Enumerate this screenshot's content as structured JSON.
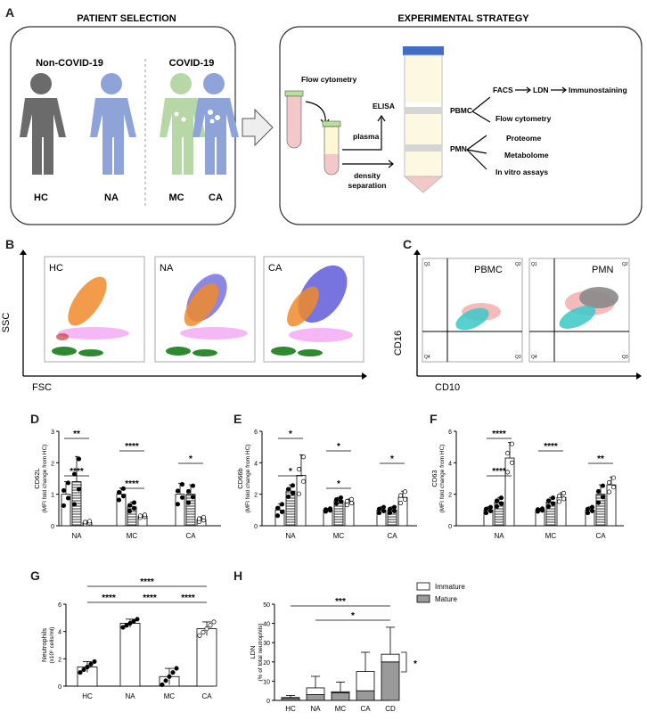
{
  "panels": {
    "A": "A",
    "B": "B",
    "C": "C",
    "D": "D",
    "E": "E",
    "F": "F",
    "G": "G",
    "H": "H"
  },
  "panelA": {
    "patient_title": "PATIENT SELECTION",
    "strategy_title": "EXPERIMENTAL STRATEGY",
    "noncovid": "Non-COVID-19",
    "covid": "COVID-19",
    "groups": [
      "HC",
      "NA",
      "MC",
      "CA"
    ],
    "flow_cytometry": "Flow cytometry",
    "elisa": "ELISA",
    "plasma": "plasma",
    "density": "density",
    "separation": "separation",
    "pbmc": "PBMC",
    "pmn": "PMN",
    "facs": "FACS",
    "ldn": "LDN",
    "immunostaining": "Immunostaining",
    "flow_cytometry2": "Flow cytometry",
    "proteome": "Proteome",
    "metabolome": "Metabolome",
    "invitro": "In vitro assays"
  },
  "panelB": {
    "plots": [
      "HC",
      "NA",
      "CA"
    ],
    "ylabel": "SSC",
    "xlabel": "FSC"
  },
  "panelC": {
    "plots": [
      "PBMC",
      "PMN"
    ],
    "ylabel": "CD16",
    "xlabel": "CD10",
    "quadrants": [
      "Q1",
      "Q2",
      "Q4",
      "Q3"
    ]
  },
  "chart_data": [
    {
      "panel": "D",
      "type": "bar",
      "ylabel_line1": "CD62L",
      "ylabel_line2": "(MFI fold change from HC)",
      "ylim": [
        0,
        3
      ],
      "yticks": [
        "0",
        "1",
        "2",
        "3"
      ],
      "categories": [
        "NA",
        "MC",
        "CA"
      ],
      "values": [
        [
          1.0,
          1.4,
          0.1
        ],
        [
          1.0,
          0.6,
          0.3
        ],
        [
          1.0,
          1.0,
          0.2
        ]
      ],
      "errors": [
        [
          0.4,
          0.8,
          0.05
        ],
        [
          0.2,
          0.15,
          0.05
        ],
        [
          0.35,
          0.3,
          0.08
        ]
      ],
      "stars": [
        "**",
        "****",
        "*",
        "****",
        "****"
      ]
    },
    {
      "panel": "E",
      "type": "bar",
      "ylabel_line1": "CD66b",
      "ylabel_line2": "(MFI fold change from HC)",
      "ylim": [
        0,
        6
      ],
      "yticks": [
        "0",
        "2",
        "4",
        "6"
      ],
      "categories": [
        "NA",
        "MC",
        "CA"
      ],
      "values": [
        [
          1.0,
          2.2,
          3.2
        ],
        [
          1.0,
          1.6,
          1.5
        ],
        [
          1.0,
          1.0,
          1.8
        ]
      ],
      "errors": [
        [
          0.4,
          0.4,
          1.3
        ],
        [
          0.1,
          0.2,
          0.2
        ],
        [
          0.2,
          0.2,
          0.4
        ]
      ],
      "stars": [
        "*",
        "*",
        "*",
        "*",
        "*"
      ]
    },
    {
      "panel": "F",
      "type": "bar",
      "ylabel_line1": "CD63",
      "ylabel_line2": "(MFI fold change from HC)",
      "ylim": [
        0,
        6
      ],
      "yticks": [
        "0",
        "2",
        "4",
        "6"
      ],
      "categories": [
        "NA",
        "MC",
        "CA"
      ],
      "values": [
        [
          1.0,
          1.5,
          4.3
        ],
        [
          1.0,
          1.5,
          1.8
        ],
        [
          1.0,
          2.0,
          2.6
        ]
      ],
      "errors": [
        [
          0.2,
          0.3,
          1.0
        ],
        [
          0.1,
          0.3,
          0.3
        ],
        [
          0.2,
          0.6,
          0.5
        ]
      ],
      "stars": [
        "****",
        "****",
        "**",
        "****"
      ]
    },
    {
      "panel": "G",
      "type": "bar",
      "ylabel_line1": "Neutrophils",
      "ylabel_line2": "(x10⁶ cells/ml)",
      "ylim": [
        0,
        6
      ],
      "yticks": [
        "0",
        "2",
        "4",
        "6"
      ],
      "categories": [
        "HC",
        "NA",
        "MC",
        "CA"
      ],
      "values": [
        1.4,
        4.6,
        0.7,
        4.2
      ],
      "errors": [
        0.4,
        0.3,
        0.6,
        0.5
      ],
      "stars": [
        "****",
        "****",
        "****",
        "****"
      ]
    },
    {
      "panel": "H",
      "type": "bar",
      "ylabel_line1": "LDN",
      "ylabel_line2": "(% of total neutrophils)",
      "ylim": [
        0,
        50
      ],
      "yticks": [
        "0",
        "10",
        "20",
        "30",
        "40",
        "50"
      ],
      "categories": [
        "HC",
        "NA",
        "MC",
        "CA",
        "CD"
      ],
      "series": [
        {
          "name": "Mature",
          "values": [
            1,
            3,
            4,
            5,
            20
          ]
        },
        {
          "name": "Immature",
          "values": [
            0.5,
            3.5,
            0.5,
            10,
            4
          ]
        }
      ],
      "errors": [
        1,
        6,
        5,
        10,
        14
      ],
      "legend": [
        "Immature",
        "Mature"
      ],
      "stars": [
        "***",
        "*",
        "*"
      ]
    }
  ]
}
